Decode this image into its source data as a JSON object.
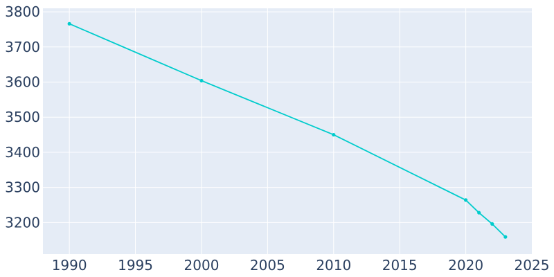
{
  "chart_data": {
    "type": "line",
    "title": "",
    "xlabel": "",
    "ylabel": "",
    "xlim": [
      1988,
      2025
    ],
    "ylim": [
      3110,
      3810
    ],
    "x_ticks": [
      1990,
      1995,
      2000,
      2005,
      2010,
      2015,
      2020,
      2025
    ],
    "y_ticks": [
      3200,
      3300,
      3400,
      3500,
      3600,
      3700,
      3800
    ],
    "grid": true,
    "legend": "none",
    "series": [
      {
        "color": "#00cccc",
        "x": [
          1990,
          2000,
          2010,
          2020,
          2021,
          2022,
          2023
        ],
        "y": [
          3766,
          3604,
          3450,
          3264,
          3228,
          3196,
          3159
        ]
      }
    ],
    "colors": {
      "plot_background": "#e5ecf6",
      "grid": "#ffffff",
      "tick_text": "#2a3f5f"
    }
  }
}
